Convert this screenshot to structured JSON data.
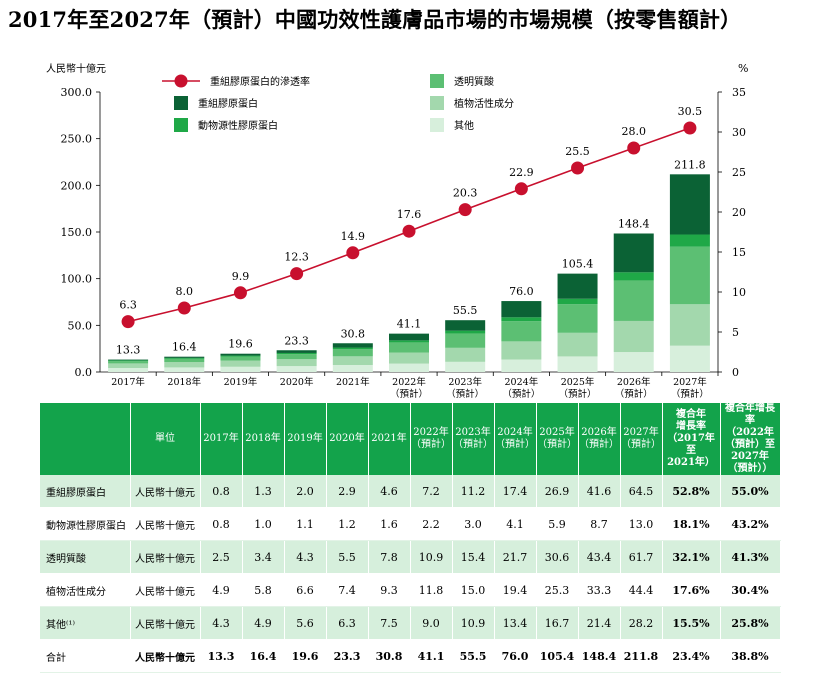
{
  "title": "2017年至2027年（預計）中國功效性護膚品市場的市場規模（按零售額計）",
  "chart_data": {
    "type": "bar",
    "stacked": true,
    "left_unit": "人民幣十億元",
    "right_unit": "%",
    "categories": [
      {
        "year": "2017年",
        "sub": ""
      },
      {
        "year": "2018年",
        "sub": ""
      },
      {
        "year": "2019年",
        "sub": ""
      },
      {
        "year": "2020年",
        "sub": ""
      },
      {
        "year": "2021年",
        "sub": ""
      },
      {
        "year": "2022年",
        "sub": "（預計）"
      },
      {
        "year": "2023年",
        "sub": "（預計）"
      },
      {
        "year": "2024年",
        "sub": "（預計）"
      },
      {
        "year": "2025年",
        "sub": "（預計）"
      },
      {
        "year": "2026年",
        "sub": "（預計）"
      },
      {
        "year": "2027年",
        "sub": "（預計）"
      }
    ],
    "ylim_left": [
      0,
      300
    ],
    "left_ticks": [
      "0.0",
      "50.0",
      "100.0",
      "150.0",
      "200.0",
      "250.0",
      "300.0"
    ],
    "ylim_right": [
      0,
      35
    ],
    "right_ticks": [
      "0",
      "5",
      "10",
      "15",
      "20",
      "25",
      "30",
      "35"
    ],
    "series": [
      {
        "name": "其他",
        "color": "#d7efdc",
        "values": [
          4.3,
          4.9,
          5.6,
          6.3,
          7.5,
          9.0,
          10.9,
          13.4,
          16.7,
          21.4,
          28.2
        ]
      },
      {
        "name": "植物活性成分",
        "color": "#a3d8ad",
        "values": [
          4.9,
          5.8,
          6.6,
          7.4,
          9.3,
          11.8,
          15.0,
          19.4,
          25.3,
          33.3,
          44.4
        ]
      },
      {
        "name": "透明質酸",
        "color": "#5cbf73",
        "values": [
          2.5,
          3.4,
          4.3,
          5.5,
          7.8,
          10.9,
          15.4,
          21.7,
          30.6,
          43.4,
          61.7
        ]
      },
      {
        "name": "動物源性膠原蛋白",
        "color": "#1fa847",
        "values": [
          0.8,
          1.0,
          1.1,
          1.2,
          1.6,
          2.2,
          3.0,
          4.1,
          5.9,
          8.7,
          13.0
        ]
      },
      {
        "name": "重組膠原蛋白",
        "color": "#0b6235",
        "values": [
          0.8,
          1.3,
          2.0,
          2.9,
          4.6,
          7.2,
          11.2,
          17.4,
          26.9,
          41.6,
          64.5
        ]
      }
    ],
    "totals": [
      "13.3",
      "16.4",
      "19.6",
      "23.3",
      "30.8",
      "41.1",
      "55.5",
      "76.0",
      "105.4",
      "148.4",
      "211.8"
    ],
    "penetration": {
      "name": "重組膠原蛋白的滲透率",
      "color": "#c8102e",
      "values": [
        6.3,
        8.0,
        9.9,
        12.3,
        14.9,
        17.6,
        20.3,
        22.9,
        25.5,
        28.0,
        30.5
      ],
      "labels": [
        "6.3",
        "8.0",
        "9.9",
        "12.3",
        "14.9",
        "17.6",
        "20.3",
        "22.9",
        "25.5",
        "28.0",
        "30.5"
      ]
    },
    "legend_position": "top"
  },
  "table": {
    "headers": [
      "",
      "單位",
      "2017年",
      "2018年",
      "2019年",
      "2020年",
      "2021年",
      "2022年\n（預計）",
      "2023年\n（預計）",
      "2024年\n（預計）",
      "2025年\n（預計）",
      "2026年\n（預計）",
      "2027年\n（預計）",
      "複合年\n增長率\n（2017年\n至\n2021年）",
      "複合年增長率\n（2022年\n（預計）至\n2027年\n（預計））"
    ],
    "rows": [
      [
        "重組膠原蛋白",
        "人民幣十億元",
        "0.8",
        "1.3",
        "2.0",
        "2.9",
        "4.6",
        "7.2",
        "11.2",
        "17.4",
        "26.9",
        "41.6",
        "64.5",
        "52.8%",
        "55.0%"
      ],
      [
        "動物源性膠原蛋白",
        "人民幣十億元",
        "0.8",
        "1.0",
        "1.1",
        "1.2",
        "1.6",
        "2.2",
        "3.0",
        "4.1",
        "5.9",
        "8.7",
        "13.0",
        "18.1%",
        "43.2%"
      ],
      [
        "透明質酸",
        "人民幣十億元",
        "2.5",
        "3.4",
        "4.3",
        "5.5",
        "7.8",
        "10.9",
        "15.4",
        "21.7",
        "30.6",
        "43.4",
        "61.7",
        "32.1%",
        "41.3%"
      ],
      [
        "植物活性成分",
        "人民幣十億元",
        "4.9",
        "5.8",
        "6.6",
        "7.4",
        "9.3",
        "11.8",
        "15.0",
        "19.4",
        "25.3",
        "33.3",
        "44.4",
        "17.6%",
        "30.4%"
      ],
      [
        "其他⁽¹⁾",
        "人民幣十億元",
        "4.3",
        "4.9",
        "5.6",
        "6.3",
        "7.5",
        "9.0",
        "10.9",
        "13.4",
        "16.7",
        "21.4",
        "28.2",
        "15.5%",
        "25.8%"
      ],
      [
        "合計",
        "人民幣十億元",
        "13.3",
        "16.4",
        "19.6",
        "23.3",
        "30.8",
        "41.1",
        "55.5",
        "76.0",
        "105.4",
        "148.4",
        "211.8",
        "23.4%",
        "38.8%"
      ]
    ]
  }
}
